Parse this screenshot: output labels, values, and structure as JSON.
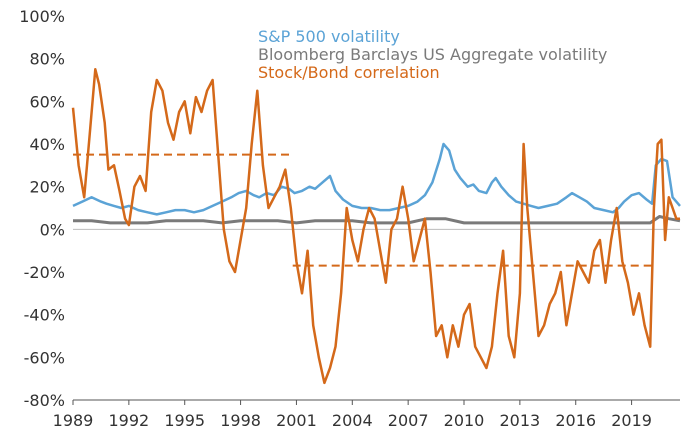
{
  "chart_data": {
    "type": "line",
    "title": "",
    "xlabel": "",
    "ylabel": "",
    "xlim": [
      1989,
      2021.6
    ],
    "ylim": [
      -80,
      100
    ],
    "x_ticks": [
      1989,
      1992,
      1995,
      1998,
      2001,
      2004,
      2007,
      2010,
      2013,
      2016,
      2019
    ],
    "x_tick_labels": [
      "1989",
      "1992",
      "1995",
      "1998",
      "2001",
      "2004",
      "2007",
      "2010",
      "2013",
      "2016",
      "2019"
    ],
    "y_ticks": [
      -80,
      -60,
      -40,
      -20,
      0,
      20,
      40,
      60,
      80,
      100
    ],
    "y_tick_labels": [
      "-80%",
      "-60%",
      "-40%",
      "-20%",
      "0%",
      "20%",
      "40%",
      "60%",
      "80%",
      "100%"
    ],
    "grid": false,
    "legend_position": "top-center",
    "series": [
      {
        "name": "S&P 500 volatility",
        "color": "#5ba3d6",
        "x": [
          1989.0,
          1989.5,
          1990.0,
          1990.5,
          1990.8,
          1991.2,
          1991.6,
          1992.0,
          1992.5,
          1993.0,
          1993.5,
          1994.0,
          1994.5,
          1995.0,
          1995.5,
          1996.0,
          1996.5,
          1997.0,
          1997.5,
          1997.9,
          1998.3,
          1998.7,
          1999.0,
          1999.4,
          1999.8,
          2000.2,
          2000.6,
          2000.9,
          2001.3,
          2001.7,
          2002.0,
          2002.4,
          2002.8,
          2003.1,
          2003.5,
          2004.0,
          2004.5,
          2005.0,
          2005.5,
          2006.0,
          2006.5,
          2007.0,
          2007.5,
          2007.9,
          2008.3,
          2008.7,
          2008.9,
          2009.2,
          2009.5,
          2009.8,
          2010.2,
          2010.5,
          2010.8,
          2011.2,
          2011.5,
          2011.7,
          2012.0,
          2012.4,
          2012.8,
          2013.2,
          2013.6,
          2014.0,
          2014.5,
          2015.0,
          2015.5,
          2015.8,
          2016.2,
          2016.6,
          2017.0,
          2017.5,
          2018.0,
          2018.3,
          2018.6,
          2019.0,
          2019.4,
          2019.8,
          2020.1,
          2020.3,
          2020.6,
          2020.9,
          2021.2,
          2021.6
        ],
        "values": [
          11,
          13,
          15,
          13,
          12,
          11,
          10,
          11,
          9,
          8,
          7,
          8,
          9,
          9,
          8,
          9,
          11,
          13,
          15,
          17,
          18,
          16,
          15,
          17,
          16,
          20,
          19,
          17,
          18,
          20,
          19,
          22,
          25,
          18,
          14,
          11,
          10,
          10,
          9,
          9,
          10,
          11,
          13,
          16,
          22,
          33,
          40,
          37,
          28,
          24,
          20,
          21,
          18,
          17,
          22,
          24,
          20,
          16,
          13,
          12,
          11,
          10,
          11,
          12,
          15,
          17,
          15,
          13,
          10,
          9,
          8,
          10,
          13,
          16,
          17,
          14,
          12,
          30,
          33,
          32,
          15,
          11
        ]
      },
      {
        "name": "Bloomberg Barclays US Aggregate volatility",
        "color": "#7a7a7a",
        "x": [
          1989.0,
          1990.0,
          1991.0,
          1992.0,
          1993.0,
          1994.0,
          1995.0,
          1996.0,
          1997.0,
          1998.0,
          1999.0,
          2000.0,
          2001.0,
          2002.0,
          2003.0,
          2004.0,
          2005.0,
          2006.0,
          2007.0,
          2008.0,
          2009.0,
          2010.0,
          2011.0,
          2012.0,
          2013.0,
          2014.0,
          2015.0,
          2016.0,
          2017.0,
          2018.0,
          2019.0,
          2020.0,
          2020.5,
          2021.0,
          2021.6
        ],
        "values": [
          4,
          4,
          3,
          3,
          3,
          4,
          4,
          4,
          3,
          4,
          4,
          4,
          3,
          4,
          4,
          4,
          3,
          3,
          3,
          5,
          5,
          3,
          3,
          3,
          3,
          3,
          3,
          3,
          3,
          3,
          3,
          3,
          6,
          5,
          4
        ]
      },
      {
        "name": "Stock/Bond correlation",
        "color": "#d4691a",
        "x": [
          1989.0,
          1989.3,
          1989.6,
          1989.9,
          1990.2,
          1990.4,
          1990.7,
          1990.9,
          1991.2,
          1991.5,
          1991.8,
          1992.0,
          1992.3,
          1992.6,
          1992.9,
          1993.2,
          1993.5,
          1993.8,
          1994.1,
          1994.4,
          1994.7,
          1995.0,
          1995.3,
          1995.6,
          1995.9,
          1996.2,
          1996.5,
          1996.8,
          1997.1,
          1997.4,
          1997.7,
          1998.0,
          1998.3,
          1998.6,
          1998.9,
          1999.2,
          1999.5,
          1999.8,
          2000.1,
          2000.4,
          2000.7,
          2001.0,
          2001.3,
          2001.6,
          2001.9,
          2002.2,
          2002.5,
          2002.8,
          2003.1,
          2003.4,
          2003.7,
          2004.0,
          2004.3,
          2004.6,
          2004.9,
          2005.2,
          2005.5,
          2005.8,
          2006.1,
          2006.4,
          2006.7,
          2007.0,
          2007.3,
          2007.6,
          2007.9,
          2008.2,
          2008.5,
          2008.8,
          2009.1,
          2009.4,
          2009.7,
          2010.0,
          2010.3,
          2010.6,
          2010.9,
          2011.2,
          2011.5,
          2011.8,
          2012.1,
          2012.4,
          2012.7,
          2013.0,
          2013.2,
          2013.4,
          2013.7,
          2014.0,
          2014.3,
          2014.6,
          2014.9,
          2015.2,
          2015.5,
          2015.8,
          2016.1,
          2016.4,
          2016.7,
          2017.0,
          2017.3,
          2017.6,
          2017.9,
          2018.2,
          2018.5,
          2018.8,
          2019.1,
          2019.4,
          2019.7,
          2020.0,
          2020.2,
          2020.4,
          2020.6,
          2020.8,
          2021.0,
          2021.2,
          2021.4,
          2021.6
        ],
        "values": [
          57,
          30,
          15,
          45,
          75,
          68,
          50,
          28,
          30,
          18,
          5,
          2,
          20,
          25,
          18,
          55,
          70,
          65,
          50,
          42,
          55,
          60,
          45,
          62,
          55,
          65,
          70,
          35,
          0,
          -15,
          -20,
          -5,
          10,
          40,
          65,
          30,
          10,
          15,
          20,
          28,
          10,
          -15,
          -30,
          -10,
          -45,
          -60,
          -72,
          -65,
          -55,
          -30,
          10,
          -5,
          -15,
          0,
          10,
          5,
          -10,
          -25,
          0,
          5,
          20,
          5,
          -15,
          -5,
          5,
          -20,
          -50,
          -45,
          -60,
          -45,
          -55,
          -40,
          -35,
          -55,
          -60,
          -65,
          -55,
          -30,
          -10,
          -50,
          -60,
          -30,
          40,
          10,
          -20,
          -50,
          -45,
          -35,
          -30,
          -20,
          -45,
          -30,
          -15,
          -20,
          -25,
          -10,
          -5,
          -25,
          -5,
          10,
          -15,
          -25,
          -40,
          -30,
          -45,
          -55,
          10,
          40,
          42,
          -5,
          15,
          10,
          5,
          5
        ]
      }
    ],
    "reference_lines": [
      {
        "series": "Stock/Bond correlation",
        "x_start": 1989.0,
        "x_end": 2000.8,
        "value": 35,
        "style": "dashed"
      },
      {
        "series": "Stock/Bond correlation",
        "x_start": 2000.8,
        "x_end": 2020.3,
        "value": -17,
        "style": "dashed"
      }
    ]
  }
}
